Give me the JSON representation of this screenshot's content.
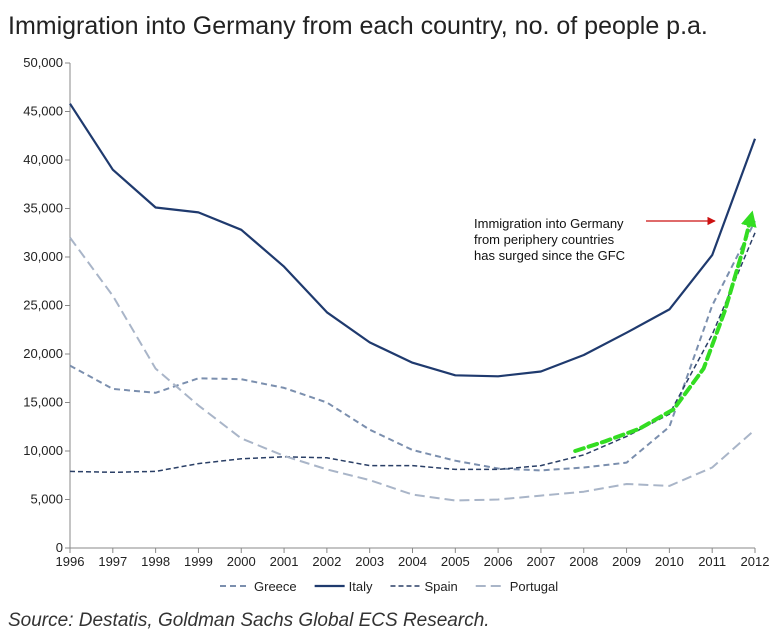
{
  "chart_data": {
    "type": "line",
    "title": "Immigration into Germany from each country, no. of people p.a.",
    "xlabel": "",
    "ylabel": "",
    "x": [
      1996,
      1997,
      1998,
      1999,
      2000,
      2001,
      2002,
      2003,
      2004,
      2005,
      2006,
      2007,
      2008,
      2009,
      2010,
      2011,
      2012
    ],
    "x_tick_labels": [
      "1996",
      "1997",
      "1998",
      "1999",
      "2000",
      "2001",
      "2002",
      "2003",
      "2004",
      "2005",
      "2006",
      "2007",
      "2008",
      "2009",
      "2010",
      "2011",
      "2012"
    ],
    "ylim": [
      0,
      50000
    ],
    "y_tick_values": [
      0,
      5000,
      10000,
      15000,
      20000,
      25000,
      30000,
      35000,
      40000,
      45000,
      50000
    ],
    "y_tick_labels": [
      "0",
      "5,000",
      "10,000",
      "15,000",
      "20,000",
      "25,000",
      "30,000",
      "35,000",
      "40,000",
      "45,000",
      "50,000"
    ],
    "grid": false,
    "legend_position": "bottom",
    "series": [
      {
        "name": "Greece",
        "color": "#7b8fae",
        "dash": "6,4",
        "width": 2,
        "values": [
          18800,
          16400,
          16000,
          17500,
          17400,
          16500,
          15000,
          12200,
          10100,
          9000,
          8200,
          8000,
          8300,
          8800,
          12500,
          25000,
          33700
        ]
      },
      {
        "name": "Italy",
        "color": "#1f3a6e",
        "dash": "",
        "width": 2.2,
        "values": [
          45800,
          39000,
          35100,
          34600,
          32800,
          29000,
          24300,
          21200,
          19100,
          17800,
          17700,
          18200,
          19900,
          22200,
          24600,
          30200,
          42200
        ]
      },
      {
        "name": "Spain",
        "color": "#2a3f66",
        "dash": "5,3",
        "width": 1.5,
        "values": [
          7900,
          7800,
          7900,
          8700,
          9200,
          9400,
          9300,
          8500,
          8500,
          8100,
          8100,
          8500,
          9600,
          11500,
          13800,
          22000,
          32500
        ]
      },
      {
        "name": "Portugal",
        "color": "#a9b5c8",
        "dash": "10,5",
        "width": 2,
        "values": [
          32000,
          26000,
          18500,
          14700,
          11300,
          9500,
          8100,
          7000,
          5500,
          4900,
          5000,
          5400,
          5800,
          6600,
          6400,
          8300,
          12200
        ]
      }
    ],
    "annotation": {
      "lines": [
        "Immigration into Germany",
        "from periphery countries",
        "has surged since the GFC"
      ],
      "arrow_color": "#cc1111",
      "trend_arrow_color": "#33dd22",
      "trend_points": [
        [
          2007.8,
          10000
        ],
        [
          2008.5,
          11000
        ],
        [
          2009.3,
          12300
        ],
        [
          2010.1,
          14300
        ],
        [
          2010.8,
          18500
        ],
        [
          2011.3,
          24500
        ],
        [
          2011.7,
          30500
        ],
        [
          2011.9,
          34000
        ]
      ]
    },
    "source": "Source: Destatis, Goldman Sachs Global ECS Research."
  }
}
